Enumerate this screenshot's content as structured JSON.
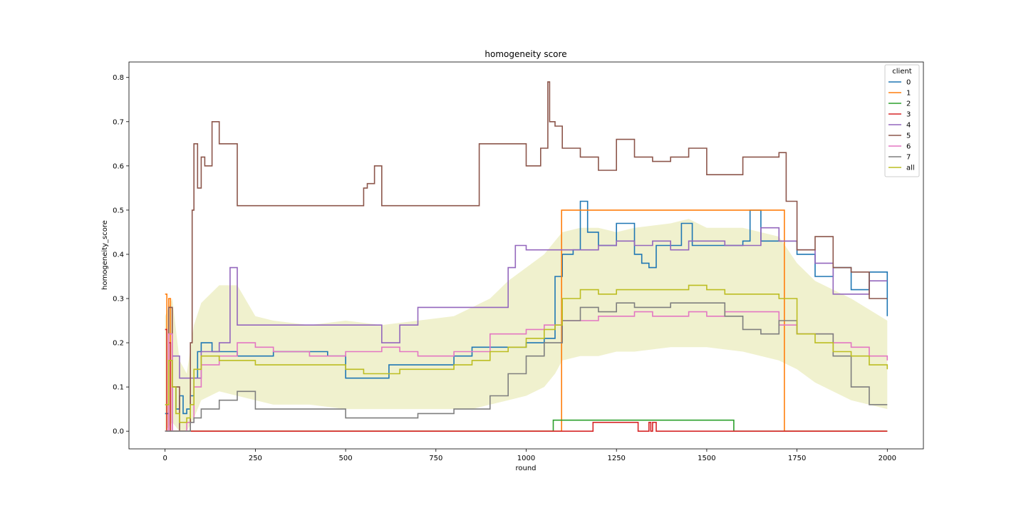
{
  "chart_data": {
    "type": "line",
    "title": "homogeneity score",
    "xlabel": "round",
    "ylabel": "homogeneity_score",
    "xlim": [
      -100,
      2100
    ],
    "ylim": [
      -0.04,
      0.835
    ],
    "xticks": [
      0,
      250,
      500,
      750,
      1000,
      1250,
      1500,
      1750,
      2000
    ],
    "yticks": [
      0.0,
      0.1,
      0.2,
      0.3,
      0.4,
      0.5,
      0.6,
      0.7,
      0.8
    ],
    "xtick_labels": [
      "0",
      "250",
      "500",
      "750",
      "1000",
      "1250",
      "1500",
      "1750",
      "2000"
    ],
    "ytick_labels": [
      "0.0",
      "0.1",
      "0.2",
      "0.3",
      "0.4",
      "0.5",
      "0.6",
      "0.7",
      "0.8"
    ],
    "grid": false,
    "legend": {
      "title": "client",
      "position": "top-right"
    },
    "band": {
      "series": "all",
      "color": "#bcbd22",
      "opacity": 0.22,
      "x": [
        0,
        20,
        40,
        60,
        80,
        100,
        150,
        200,
        250,
        300,
        400,
        500,
        600,
        700,
        800,
        850,
        900,
        950,
        1000,
        1050,
        1080,
        1100,
        1150,
        1200,
        1250,
        1300,
        1400,
        1450,
        1500,
        1600,
        1700,
        1750,
        1800,
        1900,
        2000
      ],
      "lower": [
        0.0,
        0.02,
        0.0,
        0.0,
        0.03,
        0.07,
        0.09,
        0.08,
        0.07,
        0.06,
        0.06,
        0.05,
        0.05,
        0.05,
        0.05,
        0.05,
        0.06,
        0.07,
        0.08,
        0.1,
        0.13,
        0.16,
        0.17,
        0.17,
        0.18,
        0.18,
        0.19,
        0.19,
        0.19,
        0.18,
        0.16,
        0.14,
        0.11,
        0.07,
        0.05
      ],
      "upper": [
        0.26,
        0.3,
        0.16,
        0.13,
        0.24,
        0.29,
        0.33,
        0.33,
        0.26,
        0.25,
        0.24,
        0.25,
        0.24,
        0.25,
        0.26,
        0.28,
        0.3,
        0.34,
        0.37,
        0.4,
        0.43,
        0.45,
        0.46,
        0.46,
        0.45,
        0.46,
        0.47,
        0.48,
        0.46,
        0.46,
        0.44,
        0.38,
        0.34,
        0.3,
        0.25
      ]
    },
    "series": [
      {
        "name": "0",
        "color": "#1f77b4",
        "x": [
          0,
          10,
          20,
          30,
          40,
          50,
          60,
          70,
          80,
          90,
          100,
          130,
          200,
          250,
          300,
          350,
          400,
          450,
          480,
          500,
          560,
          620,
          700,
          750,
          800,
          850,
          900,
          1000,
          1050,
          1080,
          1100,
          1130,
          1150,
          1170,
          1200,
          1250,
          1300,
          1320,
          1340,
          1360,
          1400,
          1430,
          1460,
          1500,
          1550,
          1600,
          1620,
          1650,
          1700,
          1750,
          1800,
          1850,
          1900,
          1950,
          2000
        ],
        "y": [
          0.04,
          0.0,
          0.1,
          0.05,
          0.08,
          0.04,
          0.05,
          0.08,
          0.12,
          0.18,
          0.2,
          0.18,
          0.17,
          0.17,
          0.18,
          0.18,
          0.18,
          0.17,
          0.17,
          0.12,
          0.12,
          0.15,
          0.15,
          0.15,
          0.17,
          0.19,
          0.19,
          0.2,
          0.21,
          0.35,
          0.4,
          0.41,
          0.52,
          0.45,
          0.42,
          0.47,
          0.4,
          0.38,
          0.37,
          0.42,
          0.42,
          0.47,
          0.42,
          0.42,
          0.42,
          0.43,
          0.5,
          0.43,
          0.43,
          0.4,
          0.35,
          0.37,
          0.32,
          0.36,
          0.26
        ]
      },
      {
        "name": "1",
        "color": "#ff7f0e",
        "x": [
          0,
          5,
          10,
          15,
          20,
          40,
          1090,
          1095,
          1098,
          1710,
          1712,
          1715,
          2000
        ],
        "y": [
          0.31,
          0.0,
          0.3,
          0.0,
          0.0,
          0.0,
          0.0,
          0.0,
          0.5,
          0.5,
          0.5,
          0.0,
          0.0
        ]
      },
      {
        "name": "2",
        "color": "#2ca02c",
        "x": [
          0,
          1070,
          1075,
          1570,
          1575,
          2000
        ],
        "y": [
          0.0,
          0.0,
          0.025,
          0.025,
          0.0,
          0.0
        ]
      },
      {
        "name": "3",
        "color": "#d62728",
        "x": [
          0,
          5,
          10,
          15,
          20,
          30,
          1180,
          1185,
          1210,
          1250,
          1290,
          1310,
          1340,
          1345,
          1350,
          1360,
          2000
        ],
        "y": [
          0.23,
          0.0,
          0.2,
          0.0,
          0.0,
          0.0,
          0.0,
          0.02,
          0.02,
          0.02,
          0.02,
          0.0,
          0.02,
          0.0,
          0.02,
          0.0,
          0.0
        ]
      },
      {
        "name": "4",
        "color": "#9467bd",
        "x": [
          0,
          20,
          40,
          60,
          80,
          100,
          150,
          180,
          200,
          250,
          300,
          400,
          450,
          500,
          600,
          650,
          700,
          800,
          900,
          950,
          970,
          1000,
          1050,
          1100,
          1150,
          1200,
          1250,
          1300,
          1350,
          1400,
          1450,
          1500,
          1550,
          1600,
          1650,
          1700,
          1750,
          1800,
          1850,
          1900,
          1950,
          2000
        ],
        "y": [
          0.0,
          0.17,
          0.12,
          0.12,
          0.12,
          0.18,
          0.2,
          0.37,
          0.24,
          0.24,
          0.24,
          0.24,
          0.24,
          0.24,
          0.2,
          0.24,
          0.28,
          0.28,
          0.28,
          0.37,
          0.42,
          0.41,
          0.41,
          0.41,
          0.41,
          0.42,
          0.43,
          0.42,
          0.43,
          0.41,
          0.43,
          0.43,
          0.42,
          0.42,
          0.46,
          0.43,
          0.41,
          0.38,
          0.31,
          0.31,
          0.34,
          0.34
        ]
      },
      {
        "name": "5",
        "color": "#8c564b",
        "x": [
          0,
          10,
          20,
          40,
          60,
          70,
          75,
          80,
          90,
          100,
          110,
          130,
          150,
          180,
          200,
          250,
          350,
          450,
          500,
          550,
          560,
          580,
          600,
          700,
          850,
          870,
          950,
          1000,
          1040,
          1060,
          1065,
          1080,
          1100,
          1150,
          1200,
          1250,
          1300,
          1350,
          1400,
          1450,
          1500,
          1550,
          1600,
          1650,
          1700,
          1720,
          1750,
          1800,
          1850,
          1900,
          1950,
          2000
        ],
        "y": [
          0.0,
          0.28,
          0.1,
          0.0,
          0.0,
          0.2,
          0.5,
          0.65,
          0.55,
          0.62,
          0.6,
          0.7,
          0.65,
          0.65,
          0.51,
          0.51,
          0.51,
          0.51,
          0.51,
          0.55,
          0.56,
          0.6,
          0.51,
          0.51,
          0.51,
          0.65,
          0.65,
          0.6,
          0.64,
          0.79,
          0.7,
          0.69,
          0.64,
          0.62,
          0.59,
          0.66,
          0.62,
          0.61,
          0.62,
          0.64,
          0.58,
          0.58,
          0.62,
          0.62,
          0.63,
          0.52,
          0.41,
          0.44,
          0.37,
          0.36,
          0.3,
          0.3
        ]
      },
      {
        "name": "6",
        "color": "#e377c2",
        "x": [
          0,
          10,
          20,
          40,
          60,
          80,
          100,
          150,
          200,
          250,
          300,
          400,
          450,
          500,
          550,
          600,
          650,
          700,
          750,
          800,
          900,
          950,
          1000,
          1050,
          1100,
          1150,
          1200,
          1250,
          1300,
          1350,
          1400,
          1450,
          1500,
          1550,
          1600,
          1650,
          1700,
          1750,
          1800,
          1850,
          1900,
          1950,
          2000
        ],
        "y": [
          0.0,
          0.22,
          0.0,
          0.0,
          0.02,
          0.1,
          0.15,
          0.17,
          0.2,
          0.19,
          0.18,
          0.17,
          0.17,
          0.18,
          0.18,
          0.19,
          0.18,
          0.17,
          0.17,
          0.18,
          0.22,
          0.22,
          0.23,
          0.24,
          0.25,
          0.25,
          0.26,
          0.26,
          0.27,
          0.26,
          0.26,
          0.27,
          0.26,
          0.27,
          0.27,
          0.27,
          0.24,
          0.22,
          0.22,
          0.2,
          0.19,
          0.17,
          0.16
        ]
      },
      {
        "name": "7",
        "color": "#7f7f7f",
        "x": [
          0,
          20,
          40,
          60,
          70,
          80,
          100,
          150,
          200,
          250,
          300,
          400,
          500,
          600,
          700,
          800,
          900,
          950,
          1000,
          1050,
          1100,
          1150,
          1200,
          1250,
          1300,
          1400,
          1500,
          1550,
          1600,
          1650,
          1700,
          1750,
          1800,
          1850,
          1900,
          1950,
          2000
        ],
        "y": [
          0.0,
          0.0,
          0.0,
          0.0,
          0.02,
          0.03,
          0.05,
          0.07,
          0.09,
          0.05,
          0.05,
          0.05,
          0.03,
          0.03,
          0.04,
          0.05,
          0.08,
          0.13,
          0.17,
          0.2,
          0.25,
          0.28,
          0.27,
          0.29,
          0.28,
          0.29,
          0.29,
          0.26,
          0.23,
          0.22,
          0.25,
          0.22,
          0.22,
          0.17,
          0.1,
          0.06,
          0.06
        ]
      },
      {
        "name": "all",
        "color": "#bcbd22",
        "x": [
          0,
          10,
          20,
          30,
          40,
          50,
          60,
          70,
          80,
          100,
          150,
          200,
          250,
          300,
          400,
          500,
          550,
          600,
          650,
          700,
          800,
          850,
          900,
          950,
          1000,
          1050,
          1080,
          1100,
          1150,
          1200,
          1250,
          1300,
          1400,
          1450,
          1500,
          1550,
          1600,
          1650,
          1700,
          1750,
          1800,
          1850,
          1900,
          1950,
          2000
        ],
        "y": [
          0.06,
          0.16,
          0.1,
          0.04,
          0.02,
          0.02,
          0.03,
          0.06,
          0.14,
          0.17,
          0.16,
          0.16,
          0.15,
          0.15,
          0.15,
          0.14,
          0.13,
          0.13,
          0.14,
          0.14,
          0.15,
          0.16,
          0.18,
          0.19,
          0.21,
          0.23,
          0.24,
          0.3,
          0.32,
          0.31,
          0.32,
          0.32,
          0.32,
          0.33,
          0.32,
          0.31,
          0.31,
          0.31,
          0.3,
          0.22,
          0.2,
          0.18,
          0.17,
          0.15,
          0.14
        ]
      }
    ]
  }
}
